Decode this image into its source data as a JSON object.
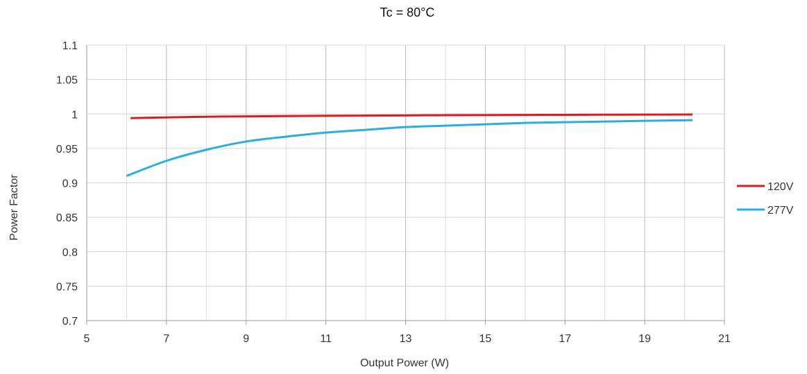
{
  "chart_data": {
    "type": "line",
    "title": "Tc = 80°C",
    "xlabel": "Output Power (W)",
    "ylabel": "Power Factor",
    "xlim": [
      5,
      21
    ],
    "ylim": [
      0.7,
      1.1
    ],
    "x_ticks": [
      5,
      7,
      9,
      11,
      13,
      15,
      17,
      19,
      21
    ],
    "y_ticks": [
      0.7,
      0.75,
      0.8,
      0.85,
      0.9,
      0.95,
      1,
      1.05,
      1.1
    ],
    "x_tick_labels": [
      "5",
      "7",
      "9",
      "11",
      "13",
      "15",
      "17",
      "19",
      "21"
    ],
    "y_tick_labels": [
      "0.7",
      "0.75",
      "0.8",
      "0.85",
      "0.9",
      "0.95",
      "1",
      "1.05",
      "1.1"
    ],
    "x_minor_grid_step": 1,
    "grid": true,
    "legend_position": "right",
    "series": [
      {
        "name": "120V",
        "color": "#e0191f",
        "x": [
          6.1,
          7,
          8,
          9,
          10,
          11,
          12,
          13,
          14,
          15,
          16,
          17,
          18,
          19,
          20.2
        ],
        "y": [
          0.994,
          0.995,
          0.996,
          0.9965,
          0.997,
          0.9973,
          0.9976,
          0.9979,
          0.9982,
          0.9984,
          0.9986,
          0.9988,
          0.999,
          0.9991,
          0.9992
        ]
      },
      {
        "name": "277V",
        "color": "#29aee3",
        "x": [
          6,
          7,
          8,
          9,
          10,
          11,
          12,
          13,
          14,
          15,
          16,
          17,
          18,
          19,
          20.2
        ],
        "y": [
          0.91,
          0.932,
          0.948,
          0.96,
          0.967,
          0.973,
          0.977,
          0.981,
          0.983,
          0.985,
          0.987,
          0.988,
          0.989,
          0.99,
          0.991
        ]
      }
    ]
  }
}
